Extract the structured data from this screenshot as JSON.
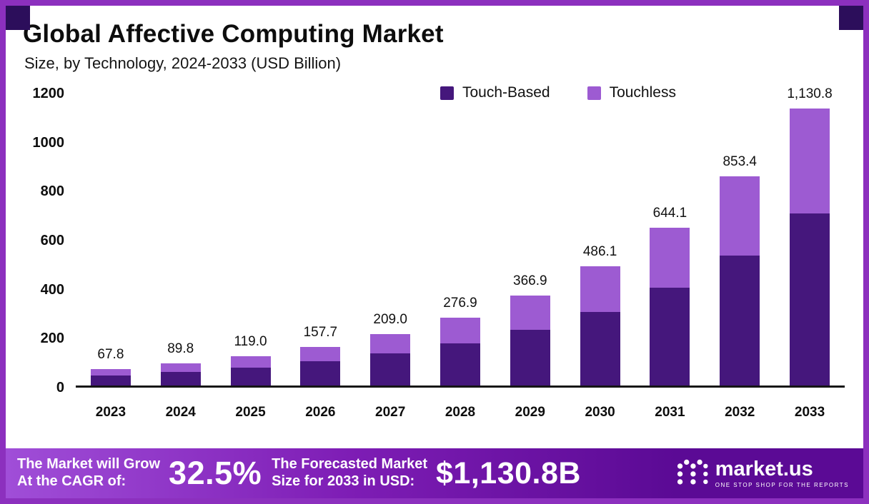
{
  "header": {
    "title": "Global Affective Computing Market",
    "subtitle": "Size, by Technology, 2024-2033 (USD Billion)"
  },
  "legend": [
    {
      "label": "Touch-Based",
      "color": "#45177C"
    },
    {
      "label": "Touchless",
      "color": "#9D5BD2"
    }
  ],
  "chart_data": {
    "type": "bar",
    "stacked": true,
    "title": "Global Affective Computing Market",
    "subtitle": "Size, by Technology, 2024-2033 (USD Billion)",
    "xlabel": "",
    "ylabel": "USD Billion",
    "categories": [
      "2023",
      "2024",
      "2025",
      "2026",
      "2027",
      "2028",
      "2029",
      "2030",
      "2031",
      "2032",
      "2033"
    ],
    "series": [
      {
        "name": "Touch-Based",
        "color": "#45177C",
        "values": [
          42.0,
          56.0,
          74.0,
          98.0,
          130.0,
          172.0,
          227.0,
          301.0,
          399.0,
          529.0,
          702.0
        ]
      },
      {
        "name": "Touchless",
        "color": "#9D5BD2",
        "values": [
          25.8,
          33.8,
          45.0,
          59.7,
          79.0,
          104.9,
          139.9,
          185.1,
          245.1,
          324.4,
          428.8
        ]
      }
    ],
    "totals": [
      67.8,
      89.8,
      119.0,
      157.7,
      209.0,
      276.9,
      366.9,
      486.1,
      644.1,
      853.4,
      1130.8
    ],
    "total_labels": [
      "67.8",
      "89.8",
      "119.0",
      "157.7",
      "209.0",
      "276.9",
      "366.9",
      "486.1",
      "644.1",
      "853.4",
      "1,130.8"
    ],
    "ylim": [
      0,
      1200
    ],
    "yticks": [
      0,
      200,
      400,
      600,
      800,
      1000,
      1200
    ],
    "grid": false,
    "legend_position": "top-right"
  },
  "footer": {
    "cagr_text_line1": "The Market will Grow",
    "cagr_text_line2": "At the CAGR of:",
    "cagr_value": "32.5%",
    "forecast_text_line1": "The Forecasted Market",
    "forecast_text_line2": "Size for 2033 in USD:",
    "forecast_value": "$1,130.8B",
    "brand": "market.us",
    "brand_tagline": "ONE STOP SHOP FOR THE REPORTS"
  },
  "colors": {
    "frame": "#8C30BE",
    "corner_accent": "#2C0E5B",
    "touch_based": "#45177C",
    "touchless": "#9D5BD2",
    "banner_gradient_start": "#A04ED8",
    "banner_gradient_mid": "#7E1DB5",
    "banner_gradient_end": "#5B0A95",
    "axis_line": "#161616"
  }
}
